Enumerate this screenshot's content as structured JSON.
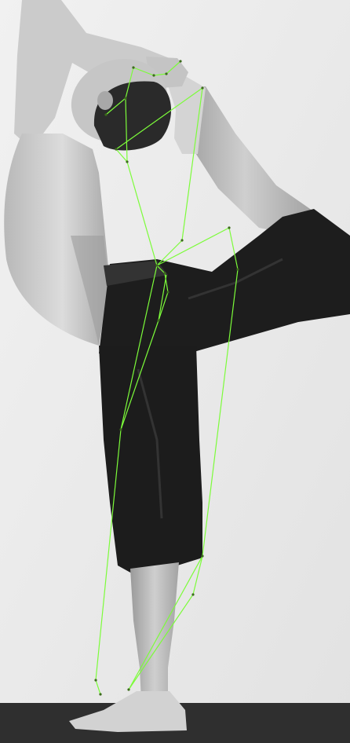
{
  "image": {
    "subject": "yogi-dancer-pose",
    "palette": {
      "background": "#ebebeb",
      "floor": "#2f2f2f",
      "skin_light": "#d8d8d8",
      "skin_mid": "#bdbdbd",
      "skin_shadow": "#8f8f8f",
      "hair": "#2a2a2a",
      "pants": "#1d1d1d",
      "pants_fold": "#333333",
      "skeleton": "#7cfc3a",
      "joint": "#3c6b1c"
    }
  }
}
